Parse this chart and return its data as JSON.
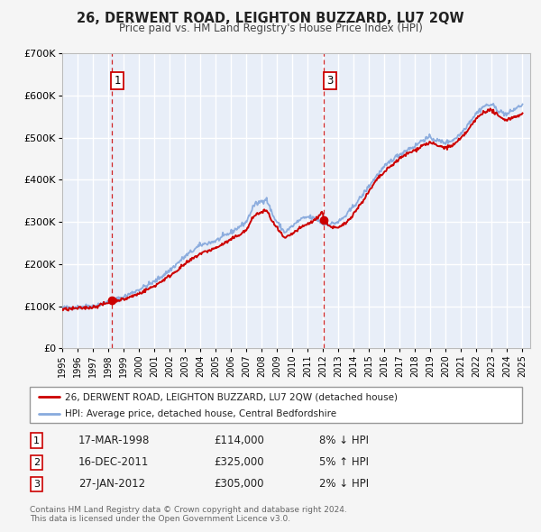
{
  "title": "26, DERWENT ROAD, LEIGHTON BUZZARD, LU7 2QW",
  "subtitle": "Price paid vs. HM Land Registry's House Price Index (HPI)",
  "legend_label_red": "26, DERWENT ROAD, LEIGHTON BUZZARD, LU7 2QW (detached house)",
  "legend_label_blue": "HPI: Average price, detached house, Central Bedfordshire",
  "transactions": [
    {
      "num": 1,
      "date": "17-MAR-1998",
      "price": "114,000",
      "pct": "8%",
      "dir": "↓",
      "year": 1998.21,
      "price_val": 114000
    },
    {
      "num": 2,
      "date": "16-DEC-2011",
      "price": "325,000",
      "pct": "5%",
      "dir": "↑",
      "year": 2011.96,
      "price_val": 325000
    },
    {
      "num": 3,
      "date": "27-JAN-2012",
      "price": "305,000",
      "pct": "2%",
      "dir": "↓",
      "year": 2012.07,
      "price_val": 305000
    }
  ],
  "footnote1": "Contains HM Land Registry data © Crown copyright and database right 2024.",
  "footnote2": "This data is licensed under the Open Government Licence v3.0.",
  "bg_color": "#f5f5f5",
  "plot_bg_color": "#e8eef8",
  "red_line_color": "#cc0000",
  "blue_line_color": "#88aadd",
  "grid_color": "#ffffff",
  "dashed_line_color": "#cc0000",
  "ylim": [
    0,
    700000
  ],
  "yticks": [
    0,
    100000,
    200000,
    300000,
    400000,
    500000,
    600000,
    700000
  ],
  "ytick_labels": [
    "£0",
    "£100K",
    "£200K",
    "£300K",
    "£400K",
    "£500K",
    "£600K",
    "£700K"
  ],
  "xlim_start": 1995.0,
  "xlim_end": 2025.5,
  "xticks": [
    1995,
    1996,
    1997,
    1998,
    1999,
    2000,
    2001,
    2002,
    2003,
    2004,
    2005,
    2006,
    2007,
    2008,
    2009,
    2010,
    2011,
    2012,
    2013,
    2014,
    2015,
    2016,
    2017,
    2018,
    2019,
    2020,
    2021,
    2022,
    2023,
    2024,
    2025
  ],
  "hpi_anchors": [
    [
      1995.0,
      96000
    ],
    [
      1996.0,
      98000
    ],
    [
      1997.0,
      101000
    ],
    [
      1998.0,
      110000
    ],
    [
      1999.0,
      122000
    ],
    [
      2000.0,
      140000
    ],
    [
      2001.0,
      158000
    ],
    [
      2002.0,
      185000
    ],
    [
      2003.0,
      218000
    ],
    [
      2004.0,
      245000
    ],
    [
      2005.0,
      255000
    ],
    [
      2006.0,
      275000
    ],
    [
      2007.0,
      300000
    ],
    [
      2007.5,
      340000
    ],
    [
      2008.3,
      355000
    ],
    [
      2008.8,
      310000
    ],
    [
      2009.5,
      275000
    ],
    [
      2010.0,
      290000
    ],
    [
      2010.5,
      305000
    ],
    [
      2011.0,
      312000
    ],
    [
      2011.5,
      308000
    ],
    [
      2012.0,
      295000
    ],
    [
      2012.5,
      295000
    ],
    [
      2013.0,
      300000
    ],
    [
      2013.5,
      315000
    ],
    [
      2014.0,
      338000
    ],
    [
      2014.5,
      360000
    ],
    [
      2015.0,
      385000
    ],
    [
      2015.5,
      410000
    ],
    [
      2016.0,
      430000
    ],
    [
      2016.5,
      448000
    ],
    [
      2017.0,
      460000
    ],
    [
      2017.5,
      472000
    ],
    [
      2018.0,
      480000
    ],
    [
      2018.5,
      495000
    ],
    [
      2019.0,
      500000
    ],
    [
      2019.5,
      492000
    ],
    [
      2020.0,
      488000
    ],
    [
      2020.5,
      495000
    ],
    [
      2021.0,
      510000
    ],
    [
      2021.5,
      535000
    ],
    [
      2022.0,
      558000
    ],
    [
      2022.5,
      575000
    ],
    [
      2023.0,
      578000
    ],
    [
      2023.5,
      562000
    ],
    [
      2024.0,
      555000
    ],
    [
      2024.5,
      568000
    ],
    [
      2025.0,
      578000
    ]
  ],
  "red_anchors": [
    [
      1995.0,
      92000
    ],
    [
      1996.0,
      95000
    ],
    [
      1997.0,
      98000
    ],
    [
      1998.0,
      108000
    ],
    [
      1998.21,
      114000
    ],
    [
      1999.0,
      116000
    ],
    [
      2000.0,
      130000
    ],
    [
      2001.0,
      148000
    ],
    [
      2002.0,
      172000
    ],
    [
      2003.0,
      200000
    ],
    [
      2004.0,
      225000
    ],
    [
      2005.0,
      238000
    ],
    [
      2006.0,
      258000
    ],
    [
      2007.0,
      280000
    ],
    [
      2007.5,
      315000
    ],
    [
      2008.3,
      328000
    ],
    [
      2008.8,
      295000
    ],
    [
      2009.5,
      260000
    ],
    [
      2010.0,
      272000
    ],
    [
      2010.5,
      285000
    ],
    [
      2011.0,
      295000
    ],
    [
      2011.5,
      305000
    ],
    [
      2011.96,
      325000
    ],
    [
      2012.07,
      305000
    ],
    [
      2012.5,
      288000
    ],
    [
      2013.0,
      285000
    ],
    [
      2013.5,
      298000
    ],
    [
      2014.0,
      320000
    ],
    [
      2014.5,
      345000
    ],
    [
      2015.0,
      372000
    ],
    [
      2015.5,
      400000
    ],
    [
      2016.0,
      418000
    ],
    [
      2016.5,
      435000
    ],
    [
      2017.0,
      450000
    ],
    [
      2017.5,
      462000
    ],
    [
      2018.0,
      470000
    ],
    [
      2018.5,
      482000
    ],
    [
      2019.0,
      488000
    ],
    [
      2019.5,
      480000
    ],
    [
      2020.0,
      476000
    ],
    [
      2020.5,
      482000
    ],
    [
      2021.0,
      498000
    ],
    [
      2021.5,
      520000
    ],
    [
      2022.0,
      545000
    ],
    [
      2022.5,
      562000
    ],
    [
      2023.0,
      565000
    ],
    [
      2023.5,
      548000
    ],
    [
      2024.0,
      542000
    ],
    [
      2024.5,
      550000
    ],
    [
      2025.0,
      555000
    ]
  ]
}
